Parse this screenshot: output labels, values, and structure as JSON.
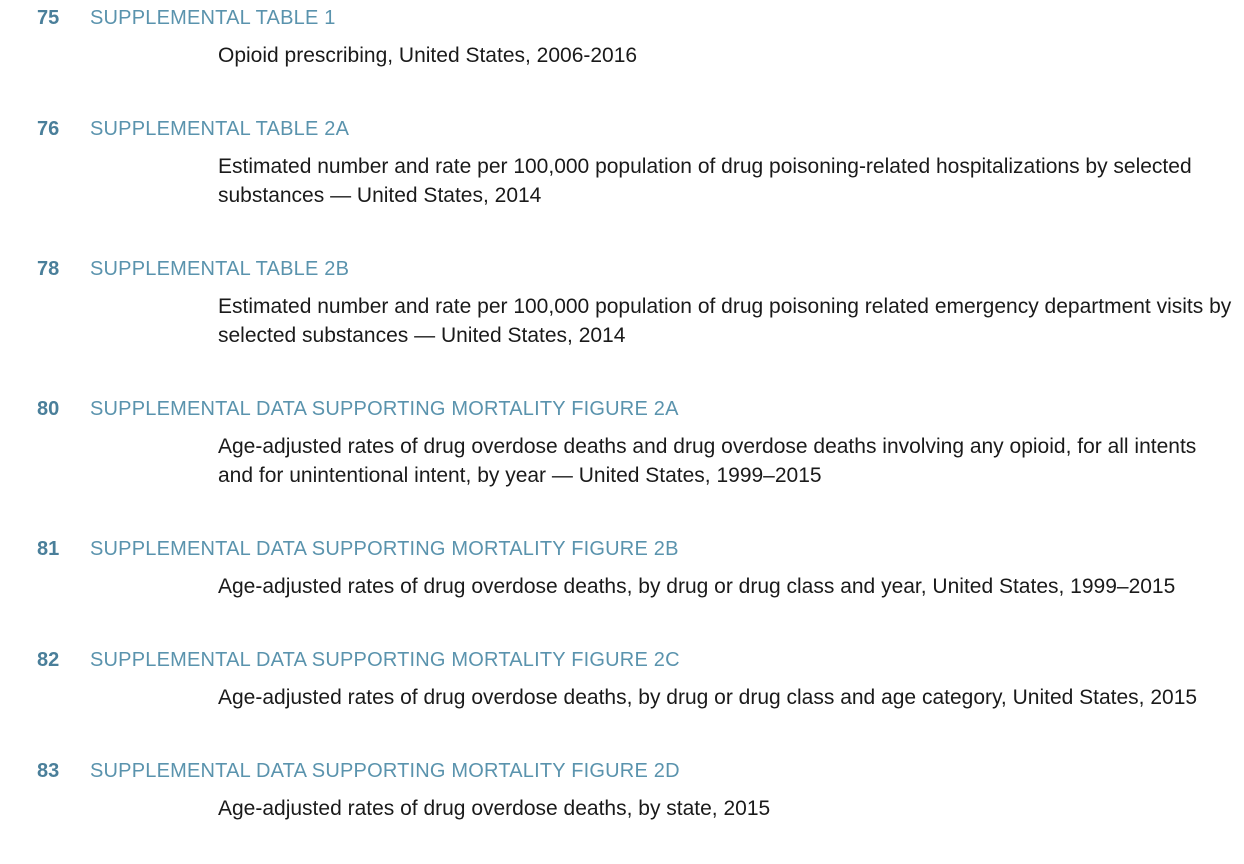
{
  "entries": [
    {
      "page": "75",
      "title": "SUPPLEMENTAL TABLE 1",
      "description": "Opioid prescribing, United States, 2006-2016"
    },
    {
      "page": "76",
      "title": "SUPPLEMENTAL TABLE 2A",
      "description": "Estimated number and rate per 100,000 population of drug poisoning-related hospitalizations by selected substances — United States, 2014"
    },
    {
      "page": "78",
      "title": "SUPPLEMENTAL TABLE 2B",
      "description": "Estimated number and rate per 100,000 population of drug poisoning related emergency department visits by selected substances — United States, 2014"
    },
    {
      "page": "80",
      "title": "SUPPLEMENTAL DATA SUPPORTING MORTALITY FIGURE 2A",
      "description": "Age-adjusted rates of drug overdose deaths and drug overdose deaths involving any opioid, for all intents and for unintentional intent, by year — United States, 1999–2015"
    },
    {
      "page": "81",
      "title": "SUPPLEMENTAL DATA SUPPORTING MORTALITY FIGURE 2B",
      "description": "Age-adjusted rates of drug overdose deaths, by drug or drug class and year, United States, 1999–2015"
    },
    {
      "page": "82",
      "title": "SUPPLEMENTAL DATA SUPPORTING MORTALITY FIGURE 2C",
      "description": "Age-adjusted rates of drug overdose deaths, by drug or drug class and age category, United States, 2015"
    },
    {
      "page": "83",
      "title": "SUPPLEMENTAL DATA SUPPORTING MORTALITY FIGURE 2D",
      "description": "Age-adjusted rates of drug overdose deaths, by state, 2015"
    }
  ]
}
